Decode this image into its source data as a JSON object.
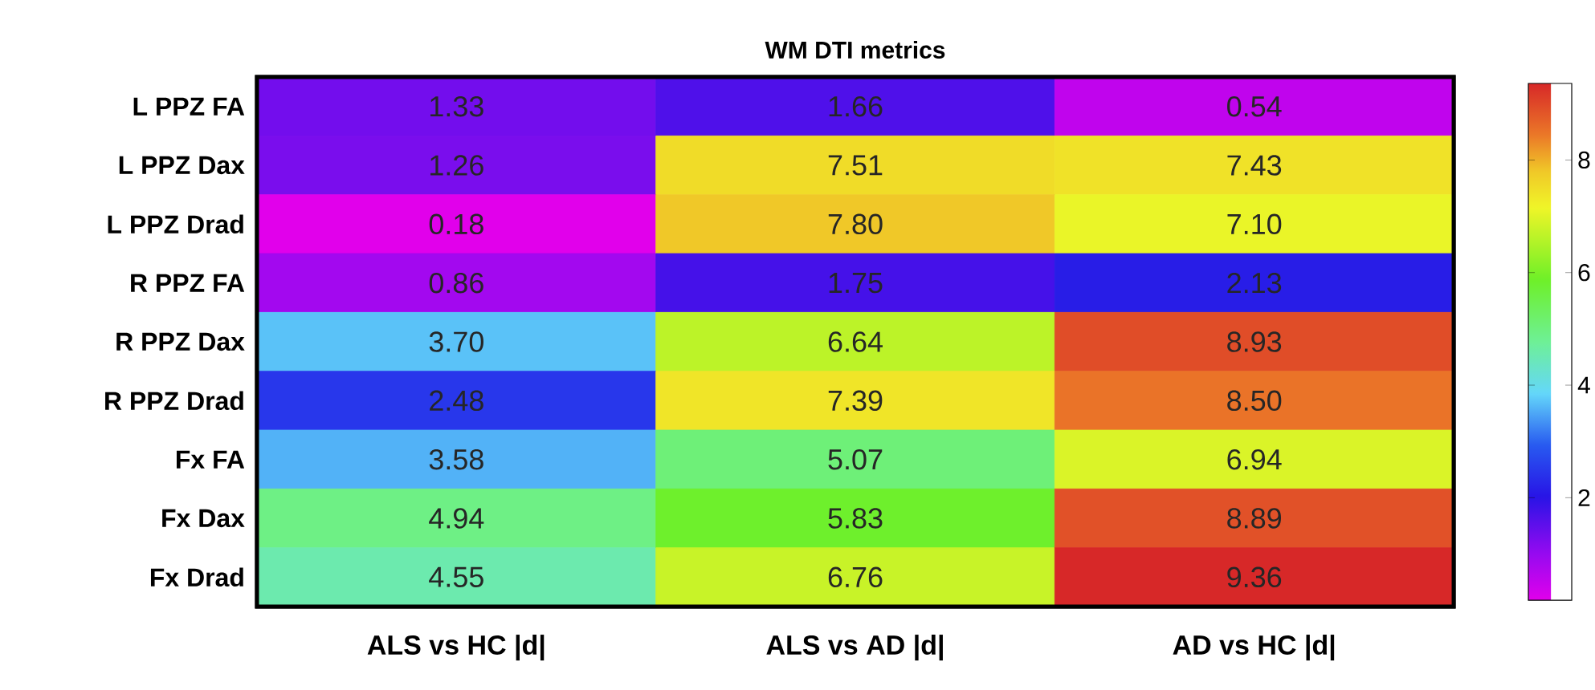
{
  "chart_data": {
    "type": "heatmap",
    "title": "WM DTI metrics",
    "categories": [
      "ALS vs HC |d|",
      "ALS vs AD |d|",
      "AD vs HC |d|"
    ],
    "y_categories": [
      "L PPZ FA",
      "L PPZ Dax",
      "L PPZ Drad",
      "R PPZ FA",
      "R PPZ Dax",
      "R PPZ Drad",
      "Fx FA",
      "Fx Dax",
      "Fx Drad"
    ],
    "cells": [
      [
        1.33,
        1.66,
        0.54
      ],
      [
        1.26,
        7.51,
        7.43
      ],
      [
        0.18,
        7.8,
        7.1
      ],
      [
        0.86,
        1.75,
        2.13
      ],
      [
        3.7,
        6.64,
        8.93
      ],
      [
        2.48,
        7.39,
        8.5
      ],
      [
        3.58,
        5.07,
        6.94
      ],
      [
        4.94,
        5.83,
        8.89
      ],
      [
        4.55,
        6.76,
        9.36
      ]
    ],
    "cell_labels": [
      [
        "1.33",
        "1.66",
        "0.54"
      ],
      [
        "1.26",
        "7.51",
        "7.43"
      ],
      [
        "0.18",
        "7.80",
        "7.10"
      ],
      [
        "0.86",
        "1.75",
        "2.13"
      ],
      [
        "3.70",
        "6.64",
        "8.93"
      ],
      [
        "2.48",
        "7.39",
        "8.50"
      ],
      [
        "3.58",
        "5.07",
        "6.94"
      ],
      [
        "4.94",
        "5.83",
        "8.89"
      ],
      [
        "4.55",
        "6.76",
        "9.36"
      ]
    ],
    "clim": [
      0.18,
      9.36
    ],
    "cticks": [
      2,
      4,
      6,
      8
    ]
  }
}
